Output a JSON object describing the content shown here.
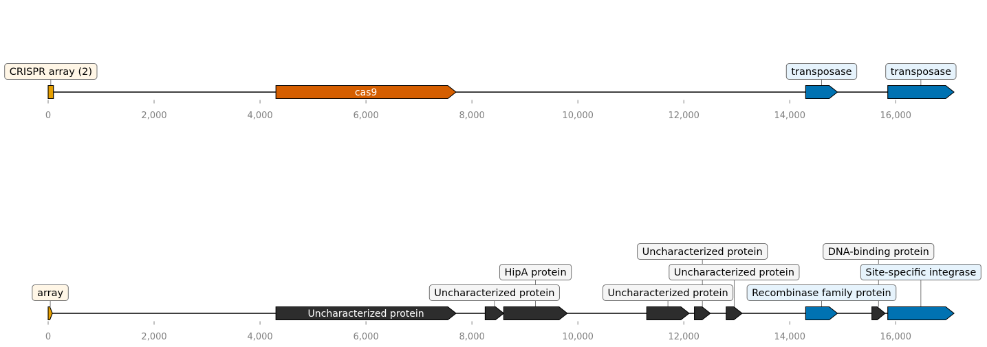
{
  "colors": {
    "crispr": "#E69F00",
    "cas": "#D55E00",
    "mobile": "#0072B2",
    "other": "#2D2D2D",
    "axis_text": "#808080",
    "mobile_box_fill": "#E6F3FC",
    "crispr_box_fill": "#FFF6E6",
    "other_box_fill": "#F5F5F5",
    "box_border": "#707070"
  },
  "tracks": [
    {
      "xlim": [
        0,
        17100
      ],
      "ticks": [
        0,
        2000,
        4000,
        6000,
        8000,
        10000,
        12000,
        14000,
        16000
      ],
      "tick_labels": [
        "0",
        "2,000",
        "4,000",
        "6,000",
        "8,000",
        "10,000",
        "12,000",
        "14,000",
        "16,000"
      ],
      "features": [
        {
          "start": 0,
          "end": 100,
          "strand": 0,
          "category": "crispr",
          "label": "CRISPR array (2)",
          "label_style": "box",
          "label_level": 1
        },
        {
          "start": 4300,
          "end": 7700,
          "strand": 1,
          "category": "cas",
          "label": "cas9",
          "label_style": "inline"
        },
        {
          "start": 14300,
          "end": 14900,
          "strand": 1,
          "category": "mobile",
          "label": "transposase",
          "label_style": "box",
          "label_level": 1
        },
        {
          "start": 15850,
          "end": 17100,
          "strand": 1,
          "category": "mobile",
          "label": "transposase",
          "label_style": "box",
          "label_level": 1
        }
      ]
    },
    {
      "xlim": [
        0,
        17100
      ],
      "ticks": [
        0,
        2000,
        4000,
        6000,
        8000,
        10000,
        12000,
        14000,
        16000
      ],
      "tick_labels": [
        "0",
        "2,000",
        "4,000",
        "6,000",
        "8,000",
        "10,000",
        "12,000",
        "14,000",
        "16,000"
      ],
      "features": [
        {
          "start": 0,
          "end": 80,
          "strand": 1,
          "category": "crispr",
          "label": "array",
          "label_style": "box",
          "label_level": 1
        },
        {
          "start": 4300,
          "end": 7700,
          "strand": 1,
          "category": "other",
          "label": "Uncharacterized protein",
          "label_style": "inline"
        },
        {
          "start": 8250,
          "end": 8600,
          "strand": 1,
          "category": "other",
          "label": "Uncharacterized protein",
          "label_style": "box",
          "label_level": 1
        },
        {
          "start": 8600,
          "end": 9800,
          "strand": 1,
          "category": "other",
          "label": "HipA protein",
          "label_style": "box",
          "label_level": 2
        },
        {
          "start": 11300,
          "end": 12100,
          "strand": 1,
          "category": "other",
          "label": "Uncharacterized protein",
          "label_style": "box",
          "label_level": 1
        },
        {
          "start": 12200,
          "end": 12500,
          "strand": 1,
          "category": "other",
          "label": "Uncharacterized protein",
          "label_style": "box",
          "label_level": 3
        },
        {
          "start": 12800,
          "end": 13100,
          "strand": 1,
          "category": "other",
          "label": "Uncharacterized protein",
          "label_style": "box",
          "label_level": 2
        },
        {
          "start": 14300,
          "end": 14900,
          "strand": 1,
          "category": "mobile",
          "label": "Recombinase family protein",
          "label_style": "box",
          "label_level": 1
        },
        {
          "start": 15550,
          "end": 15800,
          "strand": 1,
          "category": "other",
          "label": "DNA-binding protein",
          "label_style": "box",
          "label_level": 3
        },
        {
          "start": 15850,
          "end": 17100,
          "strand": 1,
          "category": "mobile",
          "label": "Site-specific integrase",
          "label_style": "box",
          "label_level": 2
        }
      ]
    }
  ]
}
